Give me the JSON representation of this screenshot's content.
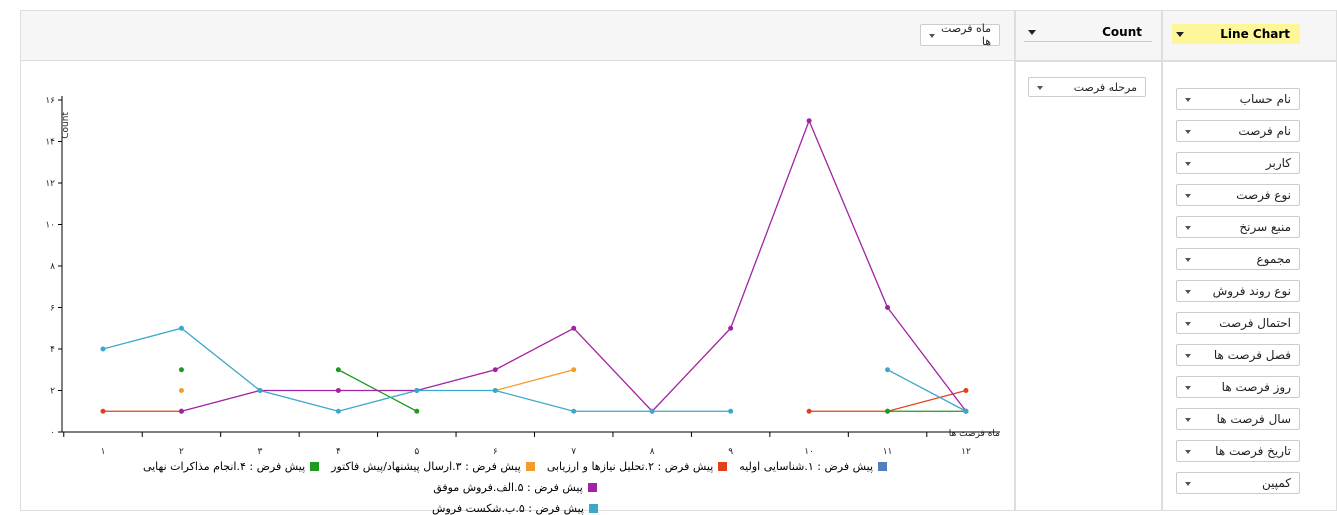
{
  "controls": {
    "renderer": "Line Chart",
    "aggregator": "Count",
    "col_attr": "ماه فرصت ها",
    "row_attr": "مرحله فرصت",
    "attributes": [
      "نام حساب",
      "نام فرصت",
      "کاربر",
      "نوع فرصت",
      "منبع سرنخ",
      "مجموع",
      "نوع روند فروش",
      "احتمال فرصت",
      "فصل فرصت ها",
      "روز فرصت ها",
      "سال فرصت ها",
      "تاریخ فرصت ها",
      "کمپین"
    ]
  },
  "chart_data": {
    "type": "line",
    "x_label": "ماه فرصت ها",
    "y_label": "Count",
    "categories": [
      "۱",
      "۲",
      "۳",
      "۴",
      "۵",
      "۶",
      "۷",
      "۸",
      "۹",
      "۱۰",
      "۱۱",
      "۱۲"
    ],
    "ylim": [
      0,
      16
    ],
    "yticks": [
      {
        "value": 0,
        "label": "۰"
      },
      {
        "value": 2,
        "label": "۲"
      },
      {
        "value": 4,
        "label": "۴"
      },
      {
        "value": 6,
        "label": "۶"
      },
      {
        "value": 8,
        "label": "۸"
      },
      {
        "value": 10,
        "label": "۱۰"
      },
      {
        "value": 12,
        "label": "۱۲"
      },
      {
        "value": 14,
        "label": "۱۴"
      },
      {
        "value": 16,
        "label": "۱۶"
      }
    ],
    "series": [
      {
        "name": "پیش فرض : ۱.شناسایی اولیه",
        "color": "#4f7fbd",
        "values": [
          null,
          null,
          null,
          null,
          null,
          null,
          null,
          null,
          null,
          null,
          null,
          null
        ]
      },
      {
        "name": "پیش فرض : ۲.تحلیل نیازها و ارزیابی",
        "color": "#e0401c",
        "values": [
          1,
          1,
          null,
          null,
          null,
          null,
          null,
          null,
          null,
          1,
          1,
          2
        ]
      },
      {
        "name": "پیش فرض : ۳.ارسال پیشنهاد/پیش فاکتور",
        "color": "#f39c2b",
        "values": [
          null,
          2,
          null,
          null,
          null,
          2,
          3,
          null,
          null,
          null,
          null,
          null
        ]
      },
      {
        "name": "پیش فرض : ۴.انجام مذاکرات نهایی",
        "color": "#1e9a1e",
        "values": [
          null,
          3,
          null,
          3,
          1,
          null,
          null,
          null,
          null,
          null,
          1,
          1
        ]
      },
      {
        "name": "پیش فرض : ۵.الف.فروش موفق",
        "color": "#a223a2",
        "values": [
          null,
          1,
          2,
          2,
          2,
          3,
          5,
          1,
          5,
          15,
          6,
          1
        ]
      },
      {
        "name": "پیش فرض : ۵.ب.شکست فروش",
        "color": "#3ba8cb",
        "values": [
          4,
          5,
          2,
          1,
          2,
          2,
          1,
          1,
          1,
          null,
          3,
          1
        ]
      }
    ]
  }
}
